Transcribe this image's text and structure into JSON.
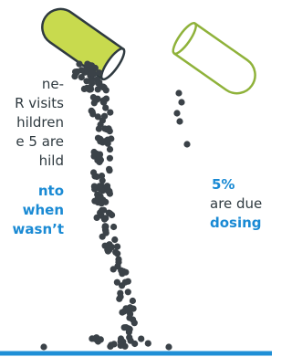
{
  "left_text": {
    "lines": [
      "ne-",
      "R visits",
      "hildren",
      "e 5 are",
      "hild"
    ],
    "highlight_lines": [
      "nto",
      "when",
      "wasn’t"
    ]
  },
  "right_text": {
    "stat": "5%",
    "lines": [
      "are due"
    ],
    "highlight": "dosing"
  }
}
